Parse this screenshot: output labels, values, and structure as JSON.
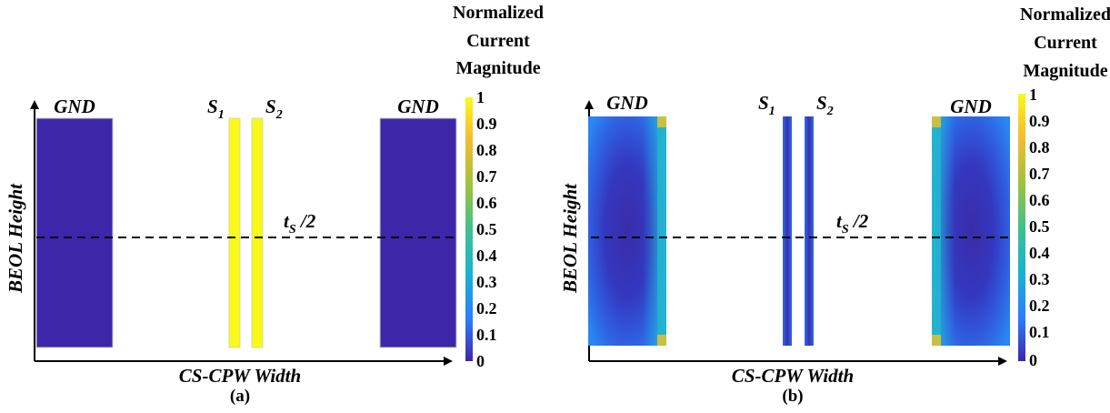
{
  "colorbar": {
    "title_lines": [
      "Normalized",
      "Current",
      "Magnitude"
    ],
    "ticks": [
      "1",
      "0.9",
      "0.8",
      "0.7",
      "0.6",
      "0.5",
      "0.4",
      "0.3",
      "0.2",
      "0.1",
      "0"
    ],
    "colors": [
      "#3e26a8",
      "#2c7dfe",
      "#17b3d2",
      "#3fc08e",
      "#a0c33a",
      "#f6bb31",
      "#f8f918"
    ]
  },
  "panels": [
    {
      "caption": "(a)",
      "x_axis_label": "CS-CPW Width",
      "y_axis_label": "BEOL Height",
      "conductors": {
        "gnd_left": "GND",
        "s1": "S",
        "s1_sub": "1",
        "s2": "S",
        "s2_sub": "2",
        "gnd_right": "GND"
      },
      "midline": {
        "label": "t",
        "label_sub": "S",
        "label_tail": " /2"
      },
      "gnd_color": "#3e26a8",
      "signal_color": "#f8f918"
    },
    {
      "caption": "(b)",
      "x_axis_label": "CS-CPW Width",
      "y_axis_label": "BEOL Height",
      "conductors": {
        "gnd_left": "GND",
        "s1": "S",
        "s1_sub": "1",
        "s2": "S",
        "s2_sub": "2",
        "gnd_right": "GND"
      },
      "midline": {
        "label": "t",
        "label_sub": "S",
        "label_tail": " /2"
      },
      "gnd_color": "#3e26a8",
      "signal_color": "#3e26a8"
    }
  ]
}
